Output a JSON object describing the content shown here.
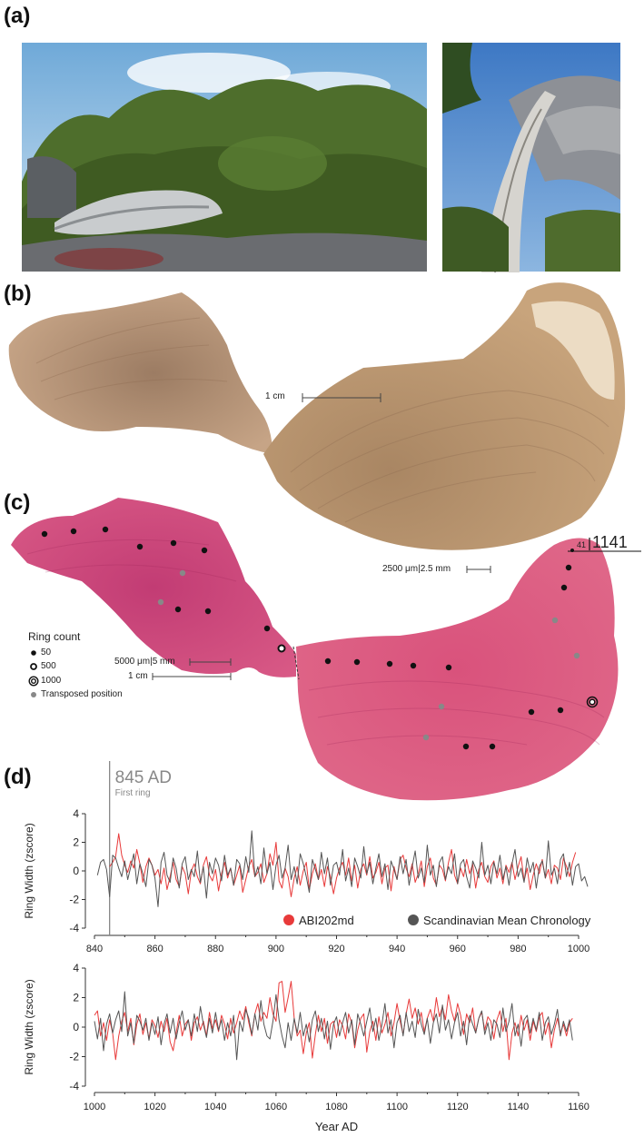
{
  "figure": {
    "panel_a": "(a)",
    "panel_b": "(b)",
    "panel_c": "(c)",
    "panel_d": "(d)"
  },
  "panel_b": {
    "scale_bar_label": "1 cm"
  },
  "panel_c": {
    "legend_title": "Ring count",
    "legend_items": [
      "50",
      "500",
      "1000",
      "Transposed position"
    ],
    "scale_left_1": "5000 μm|5 mm",
    "scale_left_2": "1 cm",
    "scale_right": "2500 μm|2.5 mm",
    "tip_small": "41",
    "tip_year": "1141"
  },
  "colors": {
    "abi_series": "#e83a3a",
    "scandi_series": "#555555",
    "axis": "#333333",
    "first_ring_line": "#888888",
    "stain_pink": "#d24878",
    "wood_tan": "#b8926c"
  },
  "chart_data": [
    {
      "type": "line",
      "annotation": "845 AD",
      "annotation_sub": "First ring",
      "annotation_x": 845,
      "ylabel": "Ring Width (zscore)",
      "xlim": [
        840,
        1000
      ],
      "ylim": [
        -4,
        4
      ],
      "xticks": [
        840,
        860,
        880,
        900,
        920,
        940,
        960,
        980,
        1000
      ],
      "yticks": [
        4,
        2,
        0,
        -2,
        -4
      ],
      "legend": [
        "ABI202md",
        "Scandinavian Mean Chronology"
      ],
      "series": [
        {
          "name": "ABI202md",
          "x_start": 845,
          "values": [
            0.3,
            0.6,
            1.0,
            2.6,
            1.1,
            0.4,
            -0.1,
            0.7,
            0.2,
            1.5,
            0.5,
            -0.8,
            0.3,
            0.9,
            0.4,
            -0.3,
            0.1,
            -0.9,
            0.2,
            -1.3,
            -0.4,
            0.6,
            -0.6,
            -1.1,
            0.3,
            -0.2,
            -1.6,
            0.0,
            0.5,
            -0.4,
            -0.9,
            0.4,
            1.0,
            -0.3,
            -0.7,
            0.1,
            -1.4,
            -0.2,
            0.6,
            -0.5,
            0.2,
            -1.0,
            -0.3,
            0.4,
            -1.5,
            -0.6,
            0.3,
            0.8,
            -0.4,
            -0.1,
            0.5,
            -0.8,
            -0.2,
            1.2,
            0.4,
            2.0,
            -0.7,
            -1.2,
            0.2,
            -0.4,
            -1.8,
            -0.5,
            0.3,
            -1.0,
            0.0,
            0.6,
            -1.3,
            -0.2,
            0.5,
            -0.6,
            0.1,
            -1.1,
            0.3,
            -0.4,
            -1.6,
            -0.5,
            0.2,
            0.6,
            -0.3,
            0.9,
            -0.7,
            0.4,
            -1.2,
            0.1,
            0.5,
            -0.3,
            1.0,
            -0.5,
            -0.1,
            0.6,
            -0.9,
            0.2,
            0.4,
            -1.4,
            0.3,
            -0.6,
            0.8,
            1.1,
            0.2,
            -0.4,
            0.5,
            -0.8,
            -0.2,
            0.7,
            -1.1,
            0.3,
            0.9,
            -0.5,
            -1.0,
            0.4,
            0.1,
            -0.7,
            0.6,
            1.5,
            -0.3,
            -0.9,
            0.2,
            -0.4,
            0.8,
            -0.2,
            0.5,
            -1.2,
            0.1,
            0.6,
            -0.4,
            -0.8,
            0.3,
            0.7,
            -0.5,
            0.2,
            -0.9,
            0.4,
            -0.1,
            0.6,
            -0.6,
            0.3,
            1.0,
            -0.7,
            0.2,
            -1.3,
            -0.3,
            0.5,
            -0.2,
            0.8,
            -0.5,
            0.1,
            -0.9,
            0.4,
            0.2,
            -0.6,
            0.9,
            0.3,
            -0.4,
            0.6,
            1.3
          ]
        },
        {
          "name": "Scandinavian Mean Chronology",
          "x_start": 841,
          "values": [
            -0.3,
            0.6,
            0.8,
            0.1,
            -1.8,
            1.1,
            0.9,
            0.2,
            -0.4,
            0.7,
            -0.6,
            0.3,
            1.2,
            -0.9,
            0.5,
            -0.2,
            -1.1,
            0.8,
            0.4,
            -0.5,
            -2.5,
            0.6,
            1.3,
            -0.3,
            -0.8,
            0.9,
            0.2,
            -1.2,
            0.5,
            1.0,
            -0.6,
            0.1,
            -0.4,
            1.4,
            -0.8,
            0.3,
            -1.9,
            0.6,
            -0.2,
            0.9,
            0.4,
            -0.7,
            1.1,
            -0.3,
            0.2,
            -1.0,
            0.8,
            0.5,
            -0.6,
            1.0,
            -0.1,
            2.8,
            -0.4,
            0.3,
            -0.9,
            1.6,
            -0.2,
            0.6,
            -1.3,
            0.4,
            1.1,
            -0.5,
            0.2,
            1.8,
            -0.6,
            0.3,
            -0.9,
            1.2,
            0.5,
            -0.4,
            -1.5,
            0.8,
            0.1,
            -0.6,
            1.3,
            -0.2,
            0.9,
            -1.0,
            0.4,
            0.6,
            -0.3,
            1.5,
            -0.7,
            0.2,
            -1.1,
            0.9,
            0.3,
            -0.5,
            1.7,
            -0.2,
            0.6,
            -0.9,
            0.2,
            1.2,
            -0.4,
            0.5,
            -1.3,
            0.7,
            0.1,
            -0.6,
            1.0,
            -0.2,
            0.8,
            -1.0,
            0.3,
            1.4,
            -0.5,
            0.2,
            -0.8,
            1.8,
            -0.3,
            0.4,
            -1.1,
            0.6,
            1.0,
            -0.6,
            0.3,
            -0.2,
            1.2,
            -0.9,
            0.5,
            0.8,
            -0.4,
            -1.2,
            0.7,
            0.2,
            -0.5,
            2.0,
            -0.3,
            0.4,
            -0.9,
            0.6,
            -0.2,
            1.1,
            -0.6,
            0.3,
            -1.0,
            0.5,
            1.5,
            -0.4,
            0.2,
            -0.8,
            0.9,
            -0.1,
            0.6,
            -1.2,
            0.3,
            0.7,
            -0.5,
            2.1,
            -0.3,
            0.2,
            -0.9,
            0.8,
            1.2,
            -0.4,
            0.6,
            -1.0,
            0.3,
            0.5,
            -0.7,
            -0.4,
            -1.1
          ]
        }
      ]
    },
    {
      "type": "line",
      "ylabel": "Ring Width (zscore)",
      "xlabel": "Year AD",
      "xlim": [
        1000,
        1160
      ],
      "ylim": [
        -4,
        4
      ],
      "xticks": [
        1000,
        1020,
        1040,
        1060,
        1080,
        1100,
        1120,
        1140,
        1160
      ],
      "yticks": [
        4,
        2,
        0,
        -2,
        -4
      ],
      "series": [
        {
          "name": "ABI202md",
          "x_start": 1000,
          "values": [
            0.8,
            1.1,
            -0.6,
            0.3,
            -0.9,
            0.5,
            -0.4,
            -2.2,
            -0.6,
            0.4,
            1.0,
            -0.3,
            0.6,
            -1.2,
            0.2,
            0.9,
            -0.5,
            0.3,
            -0.8,
            0.5,
            0.1,
            -0.7,
            0.4,
            -0.3,
            0.6,
            -1.0,
            -1.6,
            -0.4,
            0.8,
            -0.6,
            0.2,
            0.5,
            -0.9,
            0.3,
            0.7,
            -0.2,
            0.4,
            -0.6,
            1.0,
            -0.1,
            0.5,
            -0.3,
            0.8,
            0.2,
            -0.8,
            0.6,
            -0.4,
            0.3,
            1.1,
            0.5,
            1.4,
            0.3,
            -0.6,
            0.9,
            1.6,
            0.4,
            1.0,
            0.6,
            2.0,
            0.9,
            0.4,
            3.0,
            3.1,
            1.0,
            2.0,
            3.1,
            0.6,
            -0.6,
            -0.2,
            -1.8,
            -0.4,
            0.3,
            -2.1,
            -0.5,
            0.8,
            -0.3,
            0.6,
            -1.1,
            0.2,
            0.4,
            -0.7,
            0.5,
            0.1,
            -0.8,
            0.9,
            0.3,
            -1.4,
            -0.2,
            0.6,
            0.9,
            -1.7,
            -0.3,
            0.4,
            -0.9,
            0.7,
            -0.4,
            0.2,
            1.0,
            -0.6,
            0.3,
            1.6,
            0.4,
            -0.5,
            0.9,
            1.9,
            0.6,
            1.3,
            0.2,
            1.0,
            -0.3,
            0.6,
            1.2,
            0.4,
            2.0,
            0.7,
            1.4,
            0.5,
            2.2,
            1.1,
            0.4,
            1.6,
            0.8,
            -0.5,
            0.9,
            0.3,
            1.3,
            -0.4,
            0.6,
            1.0,
            -0.2,
            0.7,
            0.4,
            -0.8,
            0.5,
            1.1,
            -0.3,
            0.6,
            -2.2,
            -0.4,
            0.3,
            -0.6,
            0.8,
            -0.2,
            0.5,
            -0.9,
            0.4,
            -0.3,
            0.7,
            1.0,
            -0.5,
            0.3,
            -1.4,
            -0.2,
            0.6,
            -0.4,
            0.2,
            -0.6,
            0.3,
            0.6
          ]
        },
        {
          "name": "Scandinavian Mean Chronology",
          "x_start": 1000,
          "values": [
            0.4,
            -0.8,
            0.6,
            -1.6,
            0.2,
            0.9,
            -0.4,
            0.5,
            1.1,
            -0.3,
            2.4,
            -0.6,
            0.3,
            -1.1,
            0.8,
            0.4,
            -0.2,
            0.6,
            -0.9,
            0.3,
            -0.5,
            0.7,
            -1.2,
            0.2,
            0.9,
            -0.4,
            0.6,
            -0.8,
            0.3,
            1.1,
            -0.2,
            0.5,
            -0.6,
            0.9,
            -0.3,
            1.4,
            0.2,
            -0.7,
            0.6,
            -0.4,
            1.0,
            -0.2,
            0.5,
            -0.9,
            0.3,
            -0.6,
            0.8,
            -2.2,
            0.4,
            -0.3,
            1.2,
            0.6,
            -0.5,
            0.9,
            -0.2,
            1.8,
            0.2,
            -0.6,
            -0.8,
            0.4,
            2.2,
            0.5,
            -0.6,
            -1.4,
            0.3,
            -0.9,
            0.6,
            -0.4,
            1.0,
            -0.6,
            0.2,
            -1.0,
            0.5,
            1.1,
            -0.3,
            0.6,
            -0.8,
            0.4,
            -1.5,
            0.2,
            0.7,
            -0.6,
            0.3,
            1.0,
            -0.4,
            0.5,
            -1.2,
            0.9,
            0.2,
            -0.6,
            0.4,
            1.3,
            -0.3,
            0.6,
            -0.9,
            0.2,
            1.6,
            -0.4,
            0.5,
            -1.4,
            0.3,
            0.8,
            -0.6,
            1.0,
            -0.3,
            0.4,
            -0.7,
            1.2,
            0.2,
            -0.5,
            0.6,
            -1.1,
            0.3,
            0.9,
            -0.4,
            1.5,
            -0.2,
            0.5,
            -0.8,
            0.3,
            1.0,
            -0.6,
            0.4,
            -1.2,
            0.8,
            0.2,
            -0.4,
            0.6,
            1.1,
            -0.5,
            0.3,
            -0.9,
            0.5,
            0.2,
            -0.7,
            1.3,
            -0.3,
            0.4,
            1.6,
            -0.6,
            0.2,
            -1.3,
            0.5,
            0.8,
            -0.4,
            0.6,
            -0.2,
            1.0,
            -0.9,
            0.3,
            0.7,
            -0.5,
            0.2,
            1.2,
            -0.6,
            0.4,
            -0.3,
            0.5,
            -0.9
          ]
        }
      ]
    }
  ]
}
